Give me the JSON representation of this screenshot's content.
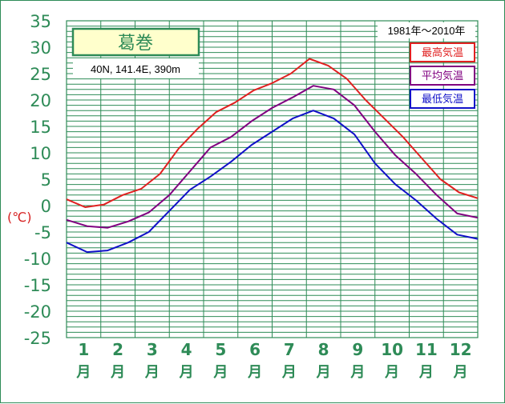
{
  "chart_data": {
    "type": "line",
    "title": "葛巻",
    "subtitle": "40N,  141.4E,  390m",
    "period": "1981年〜2010年",
    "ylabel": "(℃)",
    "ylim": [
      -25,
      35
    ],
    "yticks": [
      "35",
      "30",
      "25",
      "20",
      "15",
      "10",
      "5",
      "0",
      "-5",
      "-10",
      "-15",
      "-20",
      "-25"
    ],
    "xticks": [
      "1",
      "2",
      "3",
      "4",
      "5",
      "6",
      "7",
      "8",
      "9",
      "10",
      "11",
      "12"
    ],
    "xunit": "月",
    "grid": true,
    "legend_position": "top-right",
    "series": [
      {
        "name": "最高気温",
        "color": "#e02020",
        "values": [
          1.2,
          -0.3,
          0.2,
          2.0,
          3.2,
          6.0,
          10.8,
          14.5,
          17.7,
          19.5,
          21.8,
          23.2,
          25.0,
          27.8,
          26.5,
          24.0,
          20.0,
          16.5,
          13.0,
          9.0,
          5.0,
          2.5,
          1.4
        ]
      },
      {
        "name": "平均気温",
        "color": "#800080",
        "values": [
          -2.7,
          -3.9,
          -4.2,
          -3.0,
          -1.3,
          2.0,
          6.5,
          11.0,
          13.0,
          16.0,
          18.5,
          20.5,
          22.7,
          22.0,
          19.0,
          14.0,
          9.5,
          6.0,
          2.0,
          -1.5,
          -2.3
        ]
      },
      {
        "name": "最低気温",
        "color": "#1010c8",
        "values": [
          -7.0,
          -8.8,
          -8.5,
          -7.0,
          -5.0,
          -1.0,
          3.0,
          5.5,
          8.3,
          11.5,
          14.0,
          16.5,
          18.0,
          16.5,
          13.5,
          8.0,
          4.0,
          1.0,
          -2.5,
          -5.5,
          -6.3
        ]
      }
    ]
  }
}
